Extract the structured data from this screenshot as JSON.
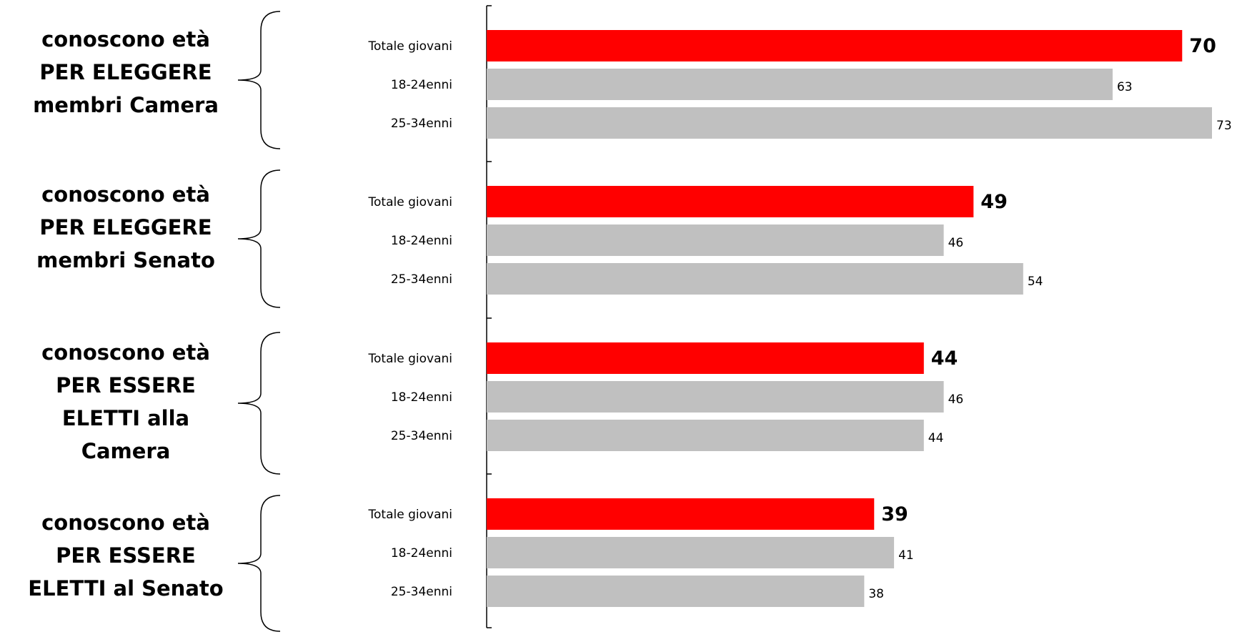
{
  "chart_data": {
    "type": "bar",
    "orientation": "horizontal",
    "colors": {
      "total": "#ff0000",
      "age": "#c0c0c0"
    },
    "xlim": [
      0,
      73
    ],
    "groups": [
      {
        "label_lines": [
          "conoscono età",
          "PER ELEGGERE",
          "membri Camera"
        ],
        "bars": [
          {
            "category": "Totale giovani",
            "value": 70,
            "is_total": true
          },
          {
            "category": "18-24enni",
            "value": 63,
            "is_total": false
          },
          {
            "category": "25-34enni",
            "value": 73,
            "is_total": false
          }
        ]
      },
      {
        "label_lines": [
          "conoscono età",
          "PER ELEGGERE",
          "membri Senato"
        ],
        "bars": [
          {
            "category": "Totale giovani",
            "value": 49,
            "is_total": true
          },
          {
            "category": "18-24enni",
            "value": 46,
            "is_total": false
          },
          {
            "category": "25-34enni",
            "value": 54,
            "is_total": false
          }
        ]
      },
      {
        "label_lines": [
          "conoscono età",
          "PER ESSERE",
          "ELETTI alla",
          "Camera"
        ],
        "bars": [
          {
            "category": "Totale giovani",
            "value": 44,
            "is_total": true
          },
          {
            "category": "18-24enni",
            "value": 46,
            "is_total": false
          },
          {
            "category": "25-34enni",
            "value": 44,
            "is_total": false
          }
        ]
      },
      {
        "label_lines": [
          "conoscono età",
          "PER ESSERE",
          "ELETTI al Senato"
        ],
        "bars": [
          {
            "category": "Totale giovani",
            "value": 39,
            "is_total": true
          },
          {
            "category": "18-24enni",
            "value": 41,
            "is_total": false
          },
          {
            "category": "25-34enni",
            "value": 38,
            "is_total": false
          }
        ]
      }
    ]
  }
}
